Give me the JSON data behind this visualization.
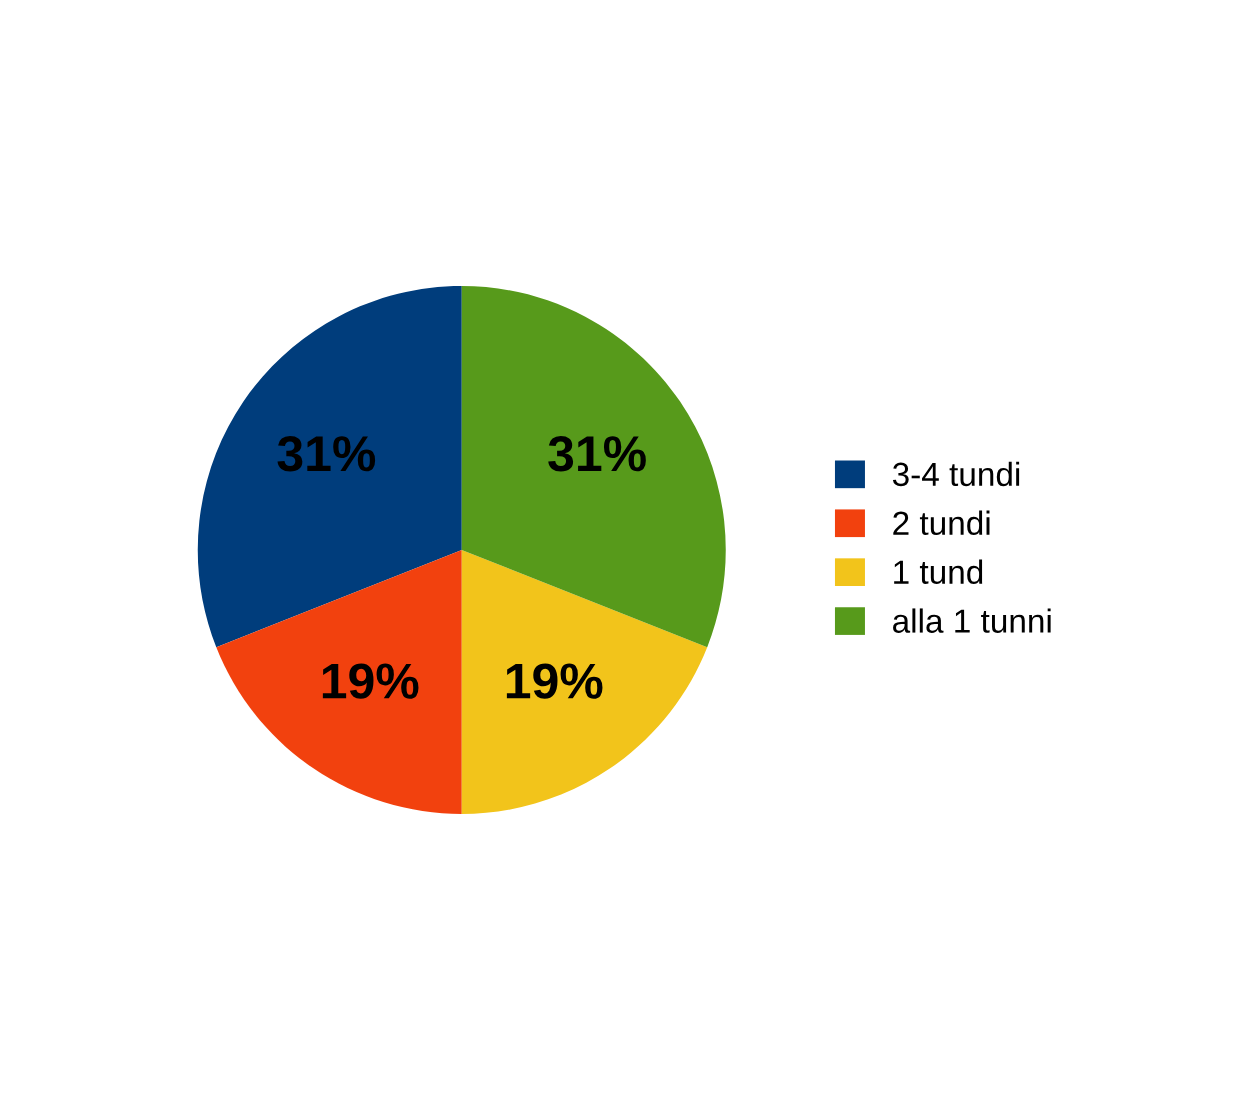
{
  "chart_data": {
    "type": "pie",
    "categories": [
      "3-4 tundi",
      "2 tundi",
      "1 tund",
      "alla 1 tunni"
    ],
    "values": [
      31,
      19,
      19,
      31
    ],
    "colors": [
      "#003d7c",
      "#f2410e",
      "#f2c41b",
      "#579a1b"
    ],
    "value_labels": [
      "31%",
      "19%",
      "19%",
      "31%"
    ],
    "legend": "right"
  }
}
